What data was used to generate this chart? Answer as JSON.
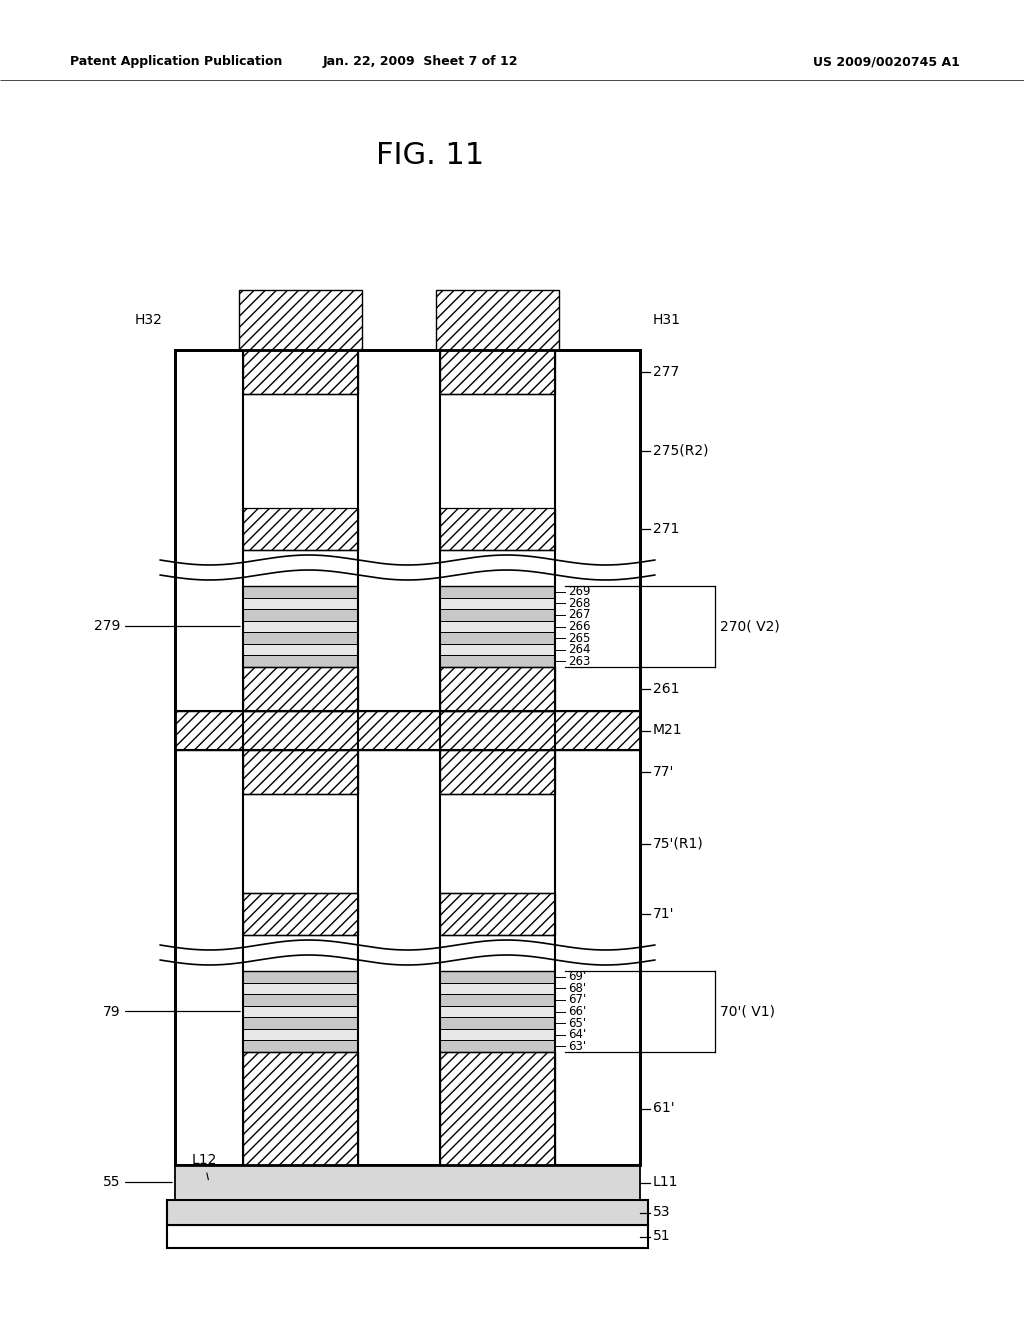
{
  "title": "FIG. 11",
  "header_left": "Patent Application Publication",
  "header_center": "Jan. 22, 2009  Sheet 7 of 12",
  "header_right": "US 2009/0020745 A1",
  "bg_color": "#ffffff"
}
